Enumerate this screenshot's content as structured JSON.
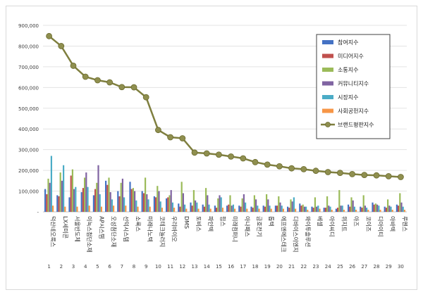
{
  "chart_data": {
    "type": "bar",
    "title": "",
    "xlabel": "",
    "ylabel": "",
    "ylim": [
      0,
      900000
    ],
    "yticks": [
      "-",
      "100,000",
      "200,000",
      "300,000",
      "400,000",
      "500,000",
      "600,000",
      "700,000",
      "800,000",
      "900,000"
    ],
    "grid": true,
    "legend_position": "top-right",
    "categories": [
      "덕산네오룩스",
      "LX세미콘",
      "서울반도체",
      "이녹스첨단소재",
      "AP시스템",
      "오성첨단소재",
      "선익시스템",
      "소룩스",
      "미래나노텍",
      "코테크놀러지",
      "우리바이오",
      "DMS",
      "토비스",
      "파인텍",
      "힘스",
      "미래컴퍼니",
      "아나패스",
      "금호전기",
      "톱텍",
      "에프엔에스테크",
      "디바이스이엔지",
      "와이투솔루션",
      "베셀",
      "아이씨디",
      "위지트",
      "아즈",
      "코이즈",
      "디아이티",
      "아바텍",
      "루멘스"
    ],
    "ranks": [
      "1",
      "2",
      "3",
      "4",
      "5",
      "6",
      "7",
      "8",
      "9",
      "10",
      "11",
      "12",
      "13",
      "14",
      "15",
      "16",
      "17",
      "18",
      "19",
      "20",
      "21",
      "22",
      "23",
      "24",
      "25",
      "26",
      "27",
      "28",
      "29",
      "30"
    ],
    "series": [
      {
        "name": "참여지수",
        "color": "#4472c4",
        "values": [
          110000,
          80000,
          70000,
          95000,
          80000,
          150000,
          100000,
          145000,
          100000,
          75000,
          65000,
          40000,
          45000,
          35000,
          30000,
          30000,
          30000,
          25000,
          30000,
          30000,
          25000,
          40000,
          25000,
          20000,
          15000,
          35000,
          25000,
          45000,
          25000,
          35000
        ]
      },
      {
        "name": "미디어지수",
        "color": "#c0504d",
        "values": [
          85000,
          75000,
          175000,
          115000,
          110000,
          130000,
          75000,
          110000,
          90000,
          70000,
          70000,
          25000,
          30000,
          25000,
          20000,
          35000,
          25000,
          20000,
          25000,
          30000,
          20000,
          30000,
          20000,
          20000,
          20000,
          25000,
          20000,
          35000,
          20000,
          30000
        ]
      },
      {
        "name": "소통지수",
        "color": "#9bbb59",
        "values": [
          160000,
          190000,
          205000,
          165000,
          140000,
          165000,
          140000,
          115000,
          165000,
          125000,
          80000,
          145000,
          105000,
          115000,
          65000,
          80000,
          65000,
          80000,
          85000,
          75000,
          60000,
          35000,
          70000,
          75000,
          105000,
          70000,
          80000,
          40000,
          60000,
          90000
        ]
      },
      {
        "name": "커뮤니티지수",
        "color": "#8064a2",
        "values": [
          140000,
          150000,
          110000,
          190000,
          225000,
          95000,
          160000,
          100000,
          85000,
          100000,
          105000,
          90000,
          55000,
          80000,
          80000,
          30000,
          85000,
          60000,
          60000,
          45000,
          50000,
          25000,
          25000,
          30000,
          30000,
          55000,
          30000,
          35000,
          30000,
          45000
        ]
      },
      {
        "name": "시장지수",
        "color": "#4bacc6",
        "values": [
          270000,
          225000,
          120000,
          120000,
          85000,
          60000,
          70000,
          55000,
          60000,
          50000,
          45000,
          35000,
          45000,
          35000,
          70000,
          35000,
          45000,
          30000,
          30000,
          30000,
          70000,
          25000,
          30000,
          25000,
          30000,
          25000,
          20000,
          30000,
          25000,
          25000
        ]
      },
      {
        "name": "사회공헌지수",
        "color": "#f79646",
        "values": [
          30000,
          25000,
          25000,
          30000,
          25000,
          30000,
          30000,
          25000,
          25000,
          20000,
          20000,
          15000,
          15000,
          15000,
          20000,
          15000,
          15000,
          15000,
          15000,
          15000,
          15000,
          10000,
          15000,
          10000,
          10000,
          10000,
          10000,
          10000,
          10000,
          10000
        ]
      }
    ],
    "total": {
      "name": "브랜드평판지수",
      "color": "#7f7f3f",
      "values": [
        848000,
        800000,
        705000,
        652000,
        635000,
        625000,
        602000,
        601000,
        553000,
        395000,
        360000,
        355000,
        286000,
        282000,
        276000,
        267000,
        258000,
        240000,
        228000,
        220000,
        210000,
        206000,
        198000,
        192000,
        188000,
        182000,
        178000,
        176000,
        172000,
        168000
      ]
    }
  }
}
